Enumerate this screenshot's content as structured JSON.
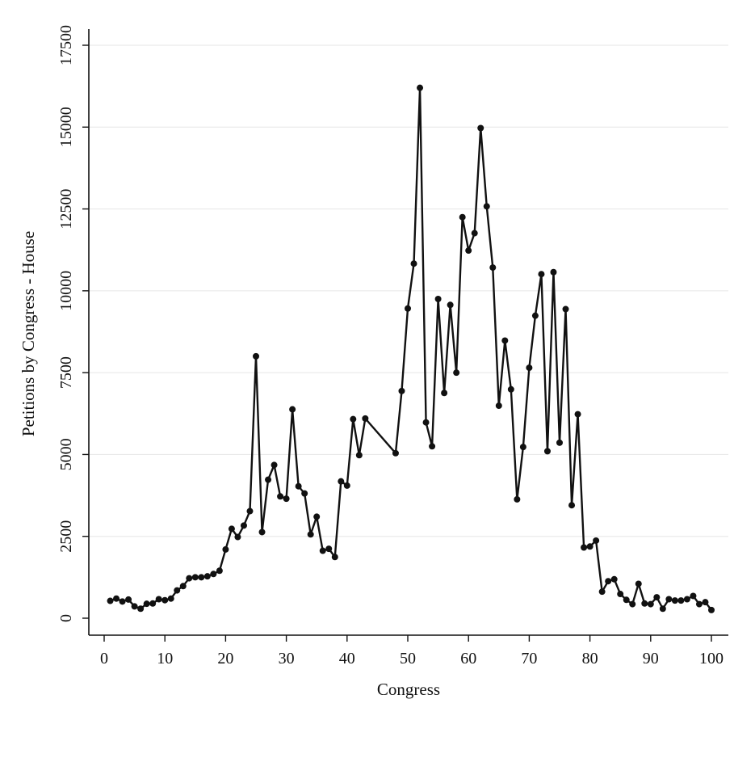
{
  "chart_data": {
    "type": "line",
    "title": "",
    "xlabel": "Congress",
    "ylabel": "Petitions by Congress - House",
    "xlim": [
      0,
      100
    ],
    "ylim": [
      0,
      17500
    ],
    "xticks": [
      0,
      10,
      20,
      30,
      40,
      50,
      60,
      70,
      80,
      90,
      100
    ],
    "yticks": [
      0,
      2500,
      5000,
      7500,
      10000,
      12500,
      15000,
      17500
    ],
    "grid": "horizontal",
    "legend": "none",
    "series": [
      {
        "color": "#111111",
        "points": [
          [
            1,
            530
          ],
          [
            2,
            600
          ],
          [
            3,
            510
          ],
          [
            4,
            570
          ],
          [
            5,
            360
          ],
          [
            6,
            290
          ],
          [
            7,
            440
          ],
          [
            8,
            450
          ],
          [
            9,
            580
          ],
          [
            10,
            550
          ],
          [
            11,
            600
          ],
          [
            12,
            850
          ],
          [
            13,
            980
          ],
          [
            14,
            1220
          ],
          [
            15,
            1250
          ],
          [
            16,
            1250
          ],
          [
            17,
            1280
          ],
          [
            18,
            1350
          ],
          [
            19,
            1450
          ],
          [
            20,
            2100
          ],
          [
            21,
            2730
          ],
          [
            22,
            2480
          ],
          [
            23,
            2830
          ],
          [
            24,
            3270
          ],
          [
            25,
            8000
          ],
          [
            26,
            2630
          ],
          [
            27,
            4230
          ],
          [
            28,
            4680
          ],
          [
            29,
            3720
          ],
          [
            30,
            3650
          ],
          [
            31,
            6380
          ],
          [
            32,
            4030
          ],
          [
            33,
            3810
          ],
          [
            34,
            2560
          ],
          [
            35,
            3100
          ],
          [
            36,
            2060
          ],
          [
            37,
            2120
          ],
          [
            38,
            1870
          ],
          [
            39,
            4180
          ],
          [
            40,
            4050
          ],
          [
            41,
            6080
          ],
          [
            42,
            4980
          ],
          [
            43,
            6100
          ],
          [
            48,
            5040
          ],
          [
            49,
            6940
          ],
          [
            50,
            9460
          ],
          [
            51,
            10830
          ],
          [
            52,
            16200
          ],
          [
            53,
            5980
          ],
          [
            54,
            5250
          ],
          [
            55,
            9750
          ],
          [
            56,
            6880
          ],
          [
            57,
            9570
          ],
          [
            58,
            7500
          ],
          [
            59,
            12250
          ],
          [
            60,
            11230
          ],
          [
            61,
            11760
          ],
          [
            62,
            14970
          ],
          [
            63,
            12580
          ],
          [
            64,
            10710
          ],
          [
            65,
            6490
          ],
          [
            66,
            8480
          ],
          [
            67,
            6990
          ],
          [
            68,
            3630
          ],
          [
            69,
            5230
          ],
          [
            70,
            7650
          ],
          [
            71,
            9240
          ],
          [
            72,
            10510
          ],
          [
            73,
            5100
          ],
          [
            74,
            10570
          ],
          [
            75,
            5360
          ],
          [
            76,
            9440
          ],
          [
            77,
            3450
          ],
          [
            78,
            6230
          ],
          [
            79,
            2160
          ],
          [
            80,
            2190
          ],
          [
            81,
            2370
          ],
          [
            82,
            810
          ],
          [
            83,
            1130
          ],
          [
            84,
            1190
          ],
          [
            85,
            740
          ],
          [
            86,
            560
          ],
          [
            87,
            430
          ],
          [
            88,
            1050
          ],
          [
            89,
            450
          ],
          [
            90,
            430
          ],
          [
            91,
            640
          ],
          [
            92,
            290
          ],
          [
            93,
            580
          ],
          [
            94,
            540
          ],
          [
            95,
            540
          ],
          [
            96,
            580
          ],
          [
            97,
            680
          ],
          [
            98,
            430
          ],
          [
            99,
            490
          ],
          [
            100,
            250
          ]
        ]
      }
    ]
  }
}
